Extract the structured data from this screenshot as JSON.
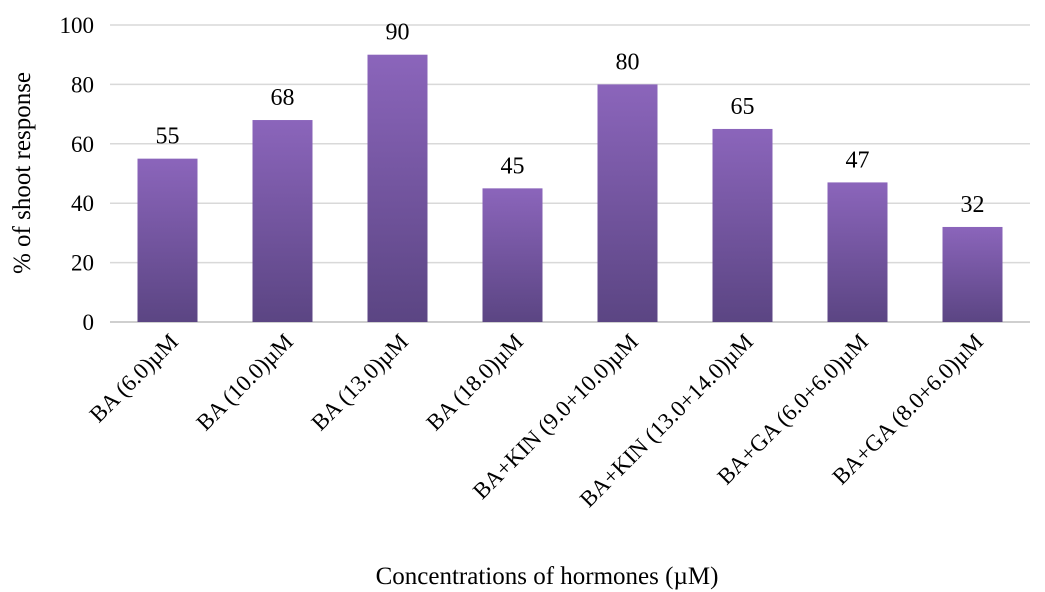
{
  "chart_data": {
    "type": "bar",
    "categories": [
      "BA (6.0)µM",
      "BA (10.0)µM",
      "BA (13.0)µM",
      "BA (18.0)µM",
      "BA+KIN (9.0+10.0)µM",
      "BA+KIN (13.0+14.0)µM",
      "BA+GA (6.0+6.0)µM",
      "BA+GA (8.0+6.0)µM"
    ],
    "values": [
      55,
      68,
      90,
      45,
      80,
      65,
      47,
      32
    ],
    "data_labels": [
      "55",
      "68",
      "90",
      "45",
      "80",
      "65",
      "47",
      "32"
    ],
    "yticks": [
      "0",
      "20",
      "40",
      "60",
      "80",
      "100"
    ],
    "ylim": [
      0,
      100
    ],
    "xlabel": "Concentrations of hormones (µM)",
    "ylabel": "% of shoot response",
    "grid": true,
    "colors": {
      "bar_top": "#8b65bb",
      "bar_bottom": "#5b4583",
      "grid": "#d9d9d9"
    }
  }
}
